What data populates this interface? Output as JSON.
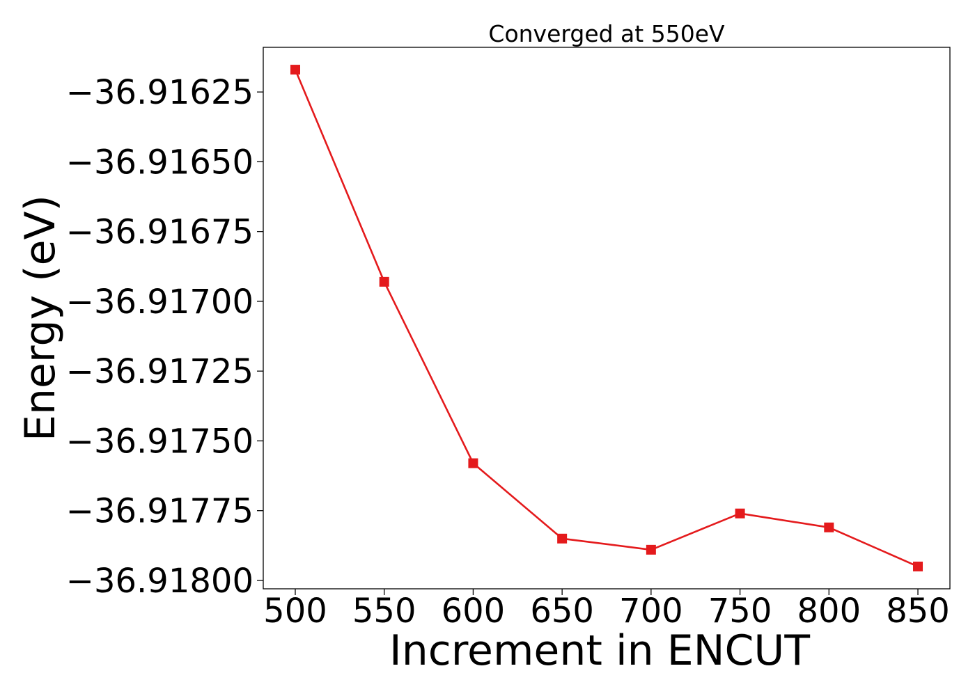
{
  "chart_data": {
    "type": "line",
    "title": "Converged at 550eV",
    "xlabel": "Increment in ENCUT",
    "ylabel": "Energy (eV)",
    "x": [
      500,
      550,
      600,
      650,
      700,
      750,
      800,
      850
    ],
    "series": [
      {
        "values": [
          -36.91617,
          -36.91693,
          -36.91758,
          -36.91785,
          -36.91789,
          -36.91776,
          -36.91781,
          -36.91795
        ],
        "color": "#e41a1c",
        "marker": "square"
      }
    ],
    "xlim": [
      482,
      868
    ],
    "ylim": [
      -36.91803,
      -36.91609
    ],
    "xticks": [
      500,
      550,
      600,
      650,
      700,
      750,
      800,
      850
    ],
    "xtick_labels": [
      "500",
      "550",
      "600",
      "650",
      "700",
      "750",
      "800",
      "850"
    ],
    "yticks": [
      -36.91625,
      -36.9165,
      -36.91675,
      -36.917,
      -36.91725,
      -36.9175,
      -36.91775,
      -36.918
    ],
    "ytick_labels": [
      "−36.91625",
      "−36.91650",
      "−36.91675",
      "−36.91700",
      "−36.91725",
      "−36.91750",
      "−36.91775",
      "−36.91800"
    ],
    "grid": false,
    "legend": false
  }
}
